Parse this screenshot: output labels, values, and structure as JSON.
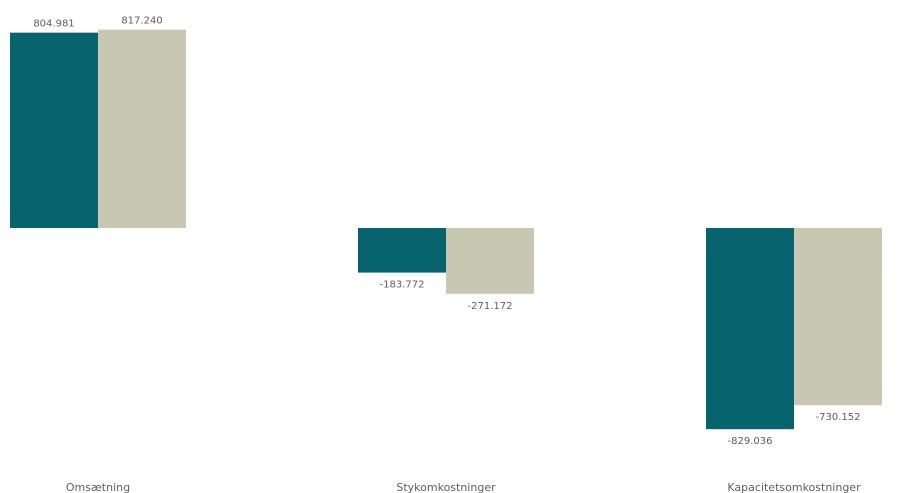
{
  "chart_data": {
    "type": "bar",
    "categories": [
      "Omsætning",
      "Stykomkostninger",
      "Kapacitetsomkostninger"
    ],
    "series": [
      {
        "color": "#07636e",
        "values": [
          804981,
          -183772,
          -829036
        ],
        "labels": [
          "804.981",
          "-183.772",
          "-829.036"
        ]
      },
      {
        "color": "#c8c7b2",
        "values": [
          817240,
          -271172,
          -730152
        ],
        "labels": [
          "817.240",
          "-271.172",
          "-730.152"
        ]
      }
    ],
    "ylim": [
      -829036,
      817240
    ],
    "grid": false,
    "legend": "none"
  }
}
